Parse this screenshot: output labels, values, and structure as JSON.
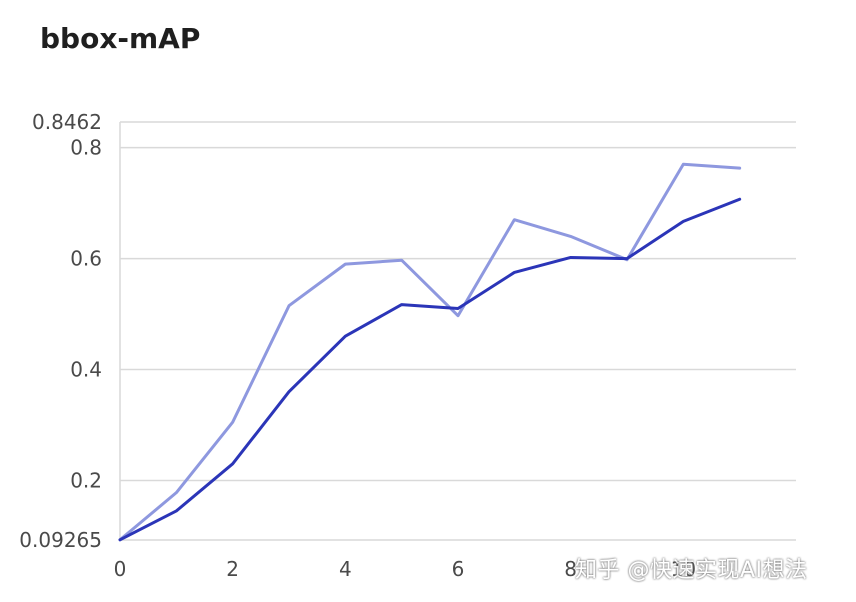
{
  "chart_data": {
    "type": "line",
    "title": "bbox-mAP",
    "x": [
      0,
      1,
      2,
      3,
      4,
      5,
      6,
      7,
      8,
      9,
      10,
      11
    ],
    "xticks": [
      "0",
      "2",
      "4",
      "6",
      "8",
      "10"
    ],
    "yticks": [
      "0.09265",
      "0.2",
      "0.4",
      "0.6",
      "0.8",
      "0.8462"
    ],
    "ylim": [
      0.09265,
      0.8462
    ],
    "xlim": [
      0,
      12
    ],
    "grid": true,
    "series": [
      {
        "color": "#2b35b8",
        "values": [
          0.093,
          0.145,
          0.23,
          0.36,
          0.46,
          0.517,
          0.51,
          0.575,
          0.602,
          0.6,
          0.667,
          0.707
        ]
      },
      {
        "color": "#8e98df",
        "values": [
          0.093,
          0.178,
          0.305,
          0.515,
          0.59,
          0.597,
          0.497,
          0.67,
          0.64,
          0.598,
          0.77,
          0.763
        ]
      }
    ]
  },
  "watermark": "知乎 @快速实现AI想法"
}
